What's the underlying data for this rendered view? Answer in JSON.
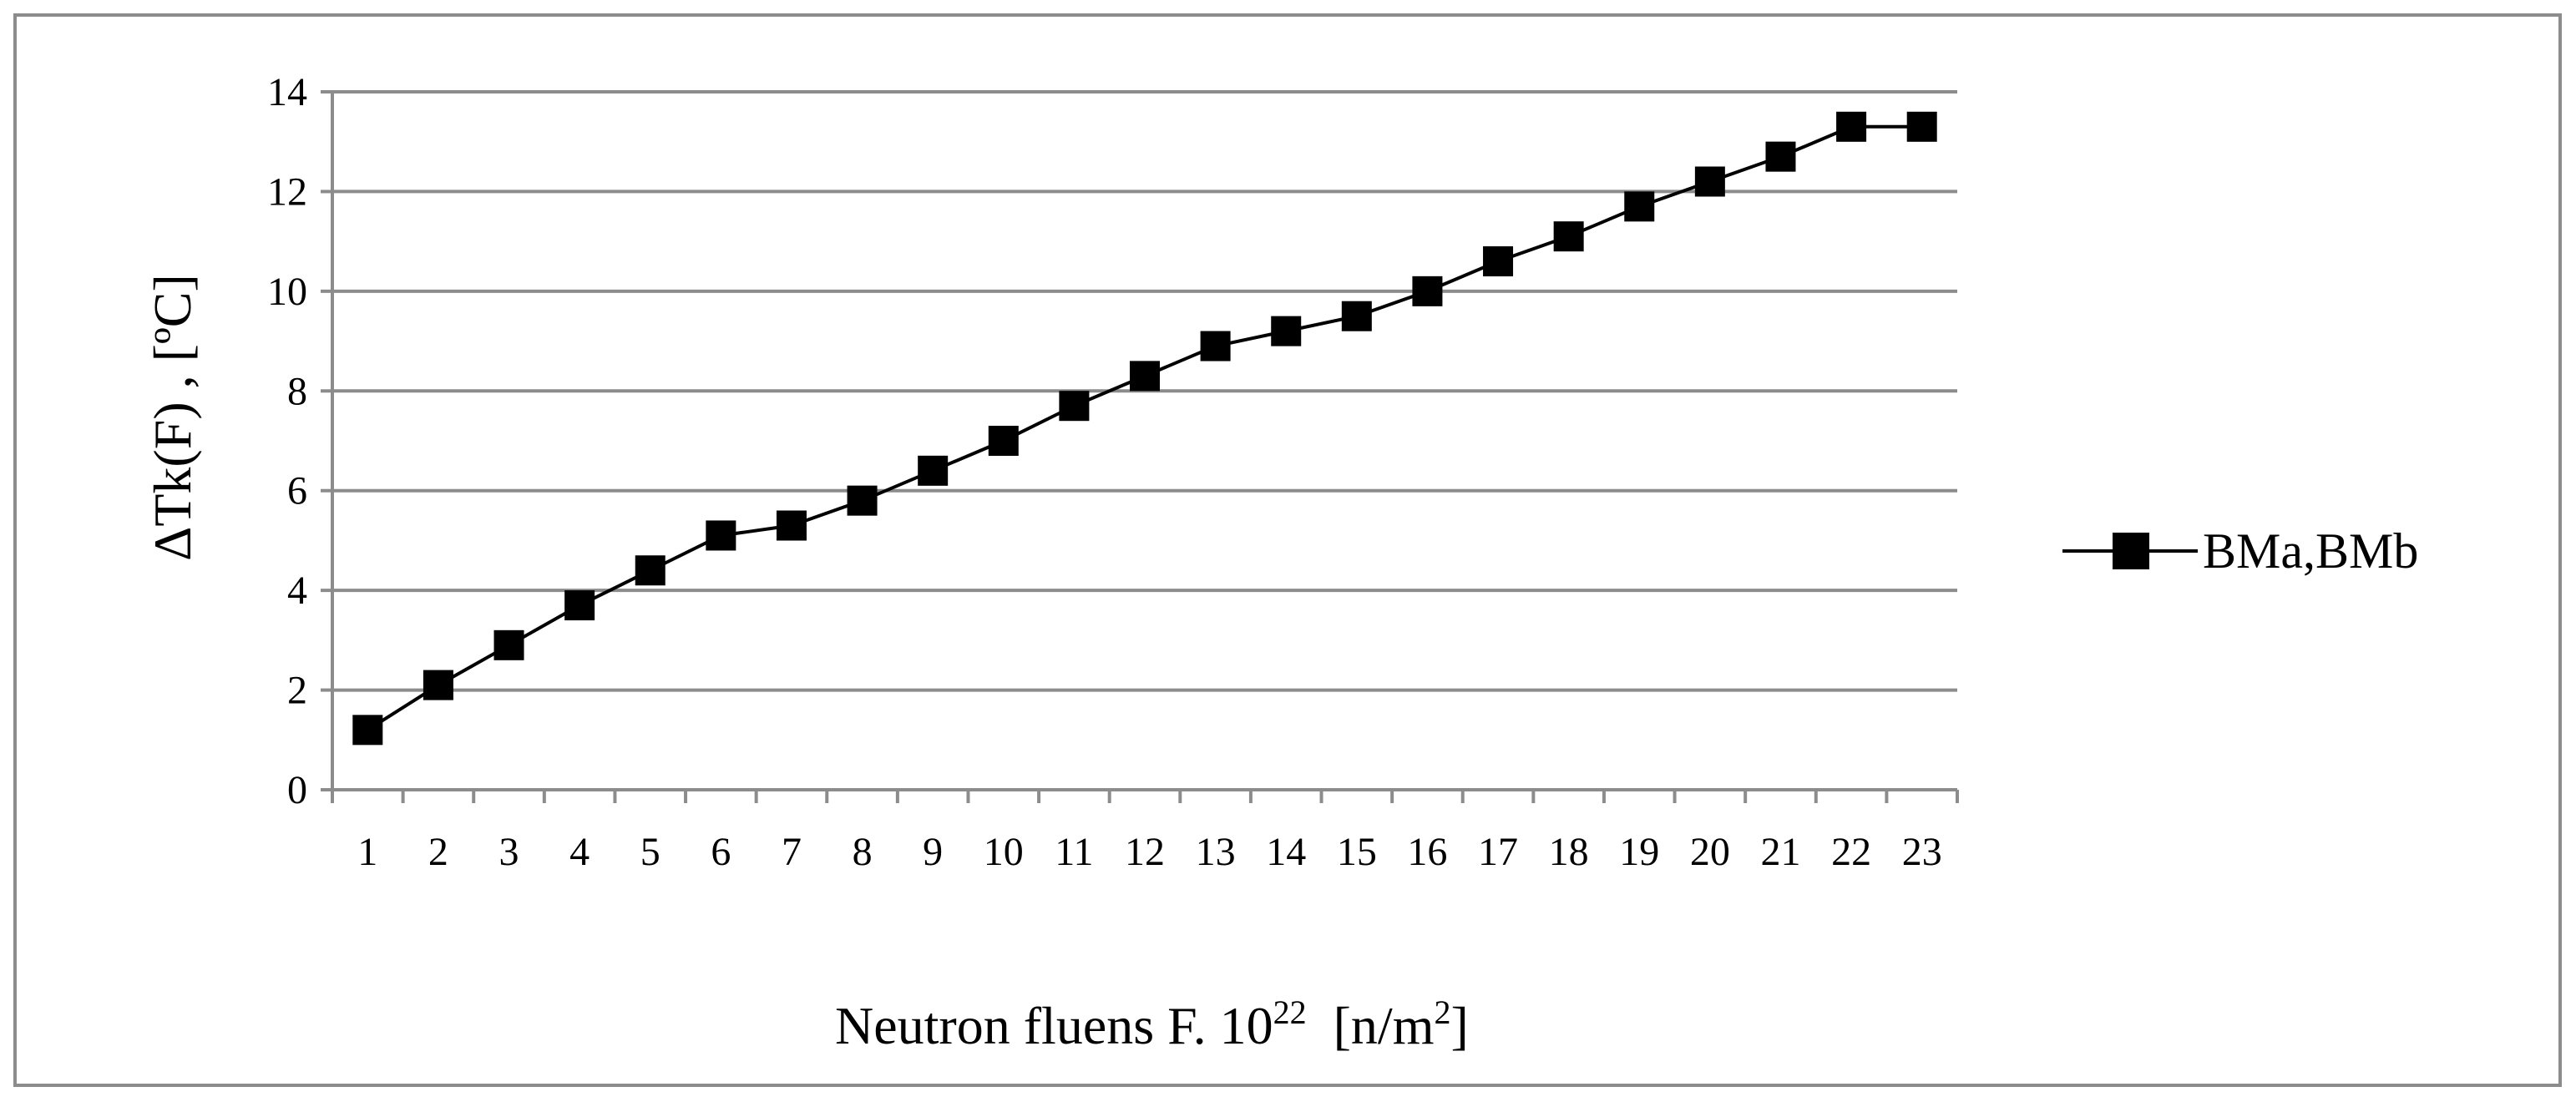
{
  "chart_data": {
    "type": "line",
    "title": "",
    "xlabel": {
      "prefix": "Neutron fluens F. 10",
      "superscript": "22",
      "suffix": "  [n/m",
      "suffix_superscript": "2",
      "close": "]"
    },
    "ylabel": "ΔTk(F) , [ºC]",
    "categories": [
      "1",
      "2",
      "3",
      "4",
      "5",
      "6",
      "7",
      "8",
      "9",
      "10",
      "11",
      "12",
      "13",
      "14",
      "15",
      "16",
      "17",
      "18",
      "19",
      "20",
      "21",
      "22",
      "23"
    ],
    "series": [
      {
        "name": "BMa,BMb",
        "marker": "square",
        "color": "#000000",
        "values": [
          1.2,
          2.1,
          2.9,
          3.7,
          4.4,
          5.1,
          5.3,
          5.8,
          6.4,
          7.0,
          7.7,
          8.3,
          8.9,
          9.2,
          9.5,
          10.0,
          10.6,
          11.1,
          11.7,
          12.2,
          12.7,
          13.3,
          13.3
        ]
      }
    ],
    "ylim": [
      0,
      14
    ],
    "yticks": [
      "0",
      "2",
      "4",
      "6",
      "8",
      "10",
      "12",
      "14"
    ],
    "grid": "horizontal",
    "legend_position": "right",
    "colors": {
      "gridline": "#8c8c8c",
      "axis": "#8c8c8c",
      "series": "#000000"
    }
  }
}
